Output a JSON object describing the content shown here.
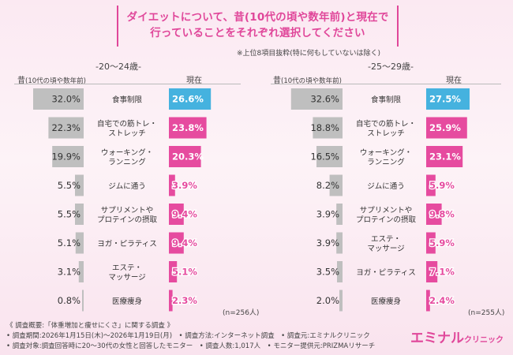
{
  "title": {
    "line1": "ダイエットについて、昔(10代の頃や数年前)と現在で",
    "line2": "行っていることをそれぞれ選択してください"
  },
  "note": "※上位8項目抜粋(特に何もしていないは除く)",
  "colors": {
    "past": "#bfbfbf",
    "now_pink": "#e64b9f",
    "now_blue": "#45b2df"
  },
  "chart_data": [
    {
      "type": "bar",
      "title": "-20〜24歳-",
      "past_label": "昔",
      "past_sub": "(10代の頃や数年前)",
      "now_label": "現在",
      "n_label": "(n=256人)",
      "categories": [
        "食事制限",
        "自宅での筋トレ・ストレッチ",
        "ウォーキング・ランニング",
        "ジムに通う",
        "サプリメントやプロテインの摂取",
        "ヨガ・ピラティス",
        "エステ・マッサージ",
        "医療痩身"
      ],
      "category_lines": [
        [
          "食事制限"
        ],
        [
          "自宅での筋トレ・",
          "ストレッチ"
        ],
        [
          "ウォーキング・",
          "ランニング"
        ],
        [
          "ジムに通う"
        ],
        [
          "サプリメントや",
          "プロテインの摂取"
        ],
        [
          "ヨガ・ピラティス"
        ],
        [
          "エステ・",
          "マッサージ"
        ],
        [
          "医療痩身"
        ]
      ],
      "series": [
        {
          "name": "昔",
          "values": [
            32.0,
            22.3,
            19.9,
            5.5,
            5.5,
            5.1,
            3.1,
            0.8
          ],
          "labels": [
            "32.0%",
            "22.3%",
            "19.9%",
            "5.5%",
            "5.5%",
            "5.1%",
            "3.1%",
            "0.8%"
          ]
        },
        {
          "name": "現在",
          "values": [
            26.6,
            23.8,
            20.3,
            3.9,
            9.4,
            9.4,
            5.1,
            2.3
          ],
          "labels": [
            "26.6%",
            "23.8%",
            "20.3%",
            "3.9%",
            "9.4%",
            "9.4%",
            "5.1%",
            "2.3%"
          ]
        }
      ]
    },
    {
      "type": "bar",
      "title": "-25〜29歳-",
      "past_label": "昔",
      "past_sub": "(10代の頃や数年前)",
      "now_label": "現在",
      "n_label": "(n=255人)",
      "categories": [
        "食事制限",
        "自宅での筋トレ・ストレッチ",
        "ウォーキング・ランニング",
        "ジムに通う",
        "サプリメントやプロテインの摂取",
        "エステ・マッサージ",
        "ヨガ・ピラティス",
        "医療痩身"
      ],
      "category_lines": [
        [
          "食事制限"
        ],
        [
          "自宅での筋トレ・",
          "ストレッチ"
        ],
        [
          "ウォーキング・",
          "ランニング"
        ],
        [
          "ジムに通う"
        ],
        [
          "サプリメントや",
          "プロテインの摂取"
        ],
        [
          "エステ・",
          "マッサージ"
        ],
        [
          "ヨガ・ピラティス"
        ],
        [
          "医療痩身"
        ]
      ],
      "series": [
        {
          "name": "昔",
          "values": [
            32.6,
            18.8,
            16.5,
            8.2,
            3.9,
            3.9,
            3.5,
            2.0
          ],
          "labels": [
            "32.6%",
            "18.8%",
            "16.5%",
            "8.2%",
            "3.9%",
            "3.9%",
            "3.5%",
            "2.0%"
          ]
        },
        {
          "name": "現在",
          "values": [
            27.5,
            25.9,
            23.1,
            5.9,
            9.8,
            5.9,
            7.1,
            2.4
          ],
          "labels": [
            "27.5%",
            "25.9%",
            "23.1%",
            "5.9%",
            "9.8%",
            "5.9%",
            "7.1%",
            "2.4%"
          ]
        }
      ]
    }
  ],
  "footer": {
    "line1": "《 調査概要:「体重増加と痩せにくさ」に関する調査 》",
    "line2": "• 調査期間:2026年1月15日(木)〜2026年1月19日(月)　• 調査方法:インターネット調査　• 調査元:エミナルクリニック",
    "line3": "• 調査対象:調査回答時に20〜30代の女性と回答したモニター　• 調査人数:1,017人　• モニター提供元:PRIZMAリサーチ"
  },
  "logo": {
    "main": "エミナル",
    "sub": "クリニック"
  }
}
